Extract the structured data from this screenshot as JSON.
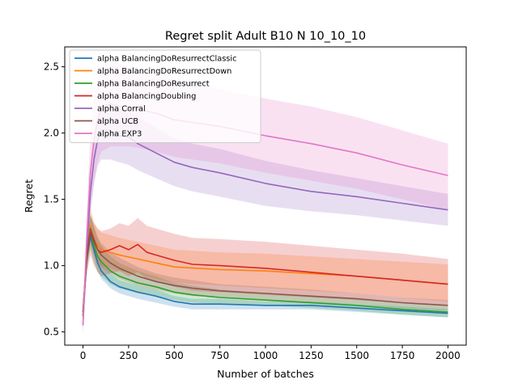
{
  "chart_data": {
    "type": "line",
    "title": "Regret split Adult B10 N 10_10_10",
    "xlabel": "Number of batches",
    "ylabel": "Regret",
    "xlim": [
      -100,
      2100
    ],
    "ylim": [
      0.4,
      2.65
    ],
    "xticks": [
      0,
      250,
      500,
      750,
      1000,
      1250,
      1500,
      1750,
      2000
    ],
    "yticks": [
      0.5,
      1.0,
      1.5,
      2.0,
      2.5
    ],
    "xtick_labels": [
      "0",
      "250",
      "500",
      "750",
      "1000",
      "1250",
      "1500",
      "1750",
      "2000"
    ],
    "ytick_labels": [
      "0.5",
      "1.0",
      "1.5",
      "2.0",
      "2.5"
    ],
    "grid": false,
    "legend_position": "upper-left",
    "bands": "shaded region around each line",
    "series": [
      {
        "name": "alpha BalancingDoResurrectClassic",
        "color": "#1f77b4",
        "x": [
          0,
          20,
          40,
          60,
          80,
          100,
          150,
          200,
          300,
          400,
          500,
          600,
          750,
          1000,
          1250,
          1500,
          1750,
          2000
        ],
        "y": [
          0.62,
          1.05,
          1.22,
          1.12,
          1.02,
          0.96,
          0.88,
          0.84,
          0.8,
          0.77,
          0.73,
          0.71,
          0.71,
          0.7,
          0.7,
          0.68,
          0.66,
          0.64
        ],
        "lower": [
          0.55,
          0.98,
          1.15,
          1.05,
          0.96,
          0.9,
          0.83,
          0.79,
          0.75,
          0.72,
          0.69,
          0.67,
          0.67,
          0.67,
          0.67,
          0.65,
          0.63,
          0.61
        ],
        "upper": [
          0.7,
          1.12,
          1.29,
          1.19,
          1.08,
          1.02,
          0.94,
          0.89,
          0.85,
          0.82,
          0.77,
          0.75,
          0.75,
          0.73,
          0.73,
          0.71,
          0.69,
          0.67
        ]
      },
      {
        "name": "alpha BalancingDoResurrectDown",
        "color": "#ff7f0e",
        "x": [
          0,
          20,
          40,
          60,
          80,
          100,
          150,
          200,
          300,
          400,
          500,
          750,
          1000,
          1250,
          1500,
          1750,
          2000
        ],
        "y": [
          0.62,
          1.1,
          1.3,
          1.2,
          1.15,
          1.12,
          1.1,
          1.08,
          1.05,
          1.02,
          0.99,
          0.97,
          0.96,
          0.94,
          0.92,
          0.89,
          0.86
        ],
        "lower": [
          0.55,
          1.0,
          1.18,
          1.08,
          1.03,
          1.0,
          0.98,
          0.96,
          0.93,
          0.9,
          0.87,
          0.85,
          0.83,
          0.81,
          0.79,
          0.76,
          0.73
        ],
        "upper": [
          0.7,
          1.2,
          1.45,
          1.33,
          1.28,
          1.25,
          1.23,
          1.21,
          1.18,
          1.15,
          1.12,
          1.1,
          1.09,
          1.07,
          1.05,
          1.03,
          1.01
        ]
      },
      {
        "name": "alpha BalancingDoResurrect",
        "color": "#2ca02c",
        "x": [
          0,
          20,
          40,
          60,
          80,
          100,
          150,
          200,
          300,
          400,
          500,
          600,
          750,
          1000,
          1250,
          1500,
          1750,
          2000
        ],
        "y": [
          0.62,
          1.05,
          1.25,
          1.15,
          1.07,
          1.03,
          0.96,
          0.92,
          0.87,
          0.84,
          0.8,
          0.78,
          0.76,
          0.74,
          0.72,
          0.7,
          0.67,
          0.65
        ],
        "lower": [
          0.55,
          0.95,
          1.12,
          1.02,
          0.95,
          0.92,
          0.86,
          0.83,
          0.79,
          0.77,
          0.74,
          0.72,
          0.71,
          0.7,
          0.68,
          0.66,
          0.63,
          0.61
        ],
        "upper": [
          0.7,
          1.15,
          1.4,
          1.29,
          1.2,
          1.15,
          1.07,
          1.02,
          0.96,
          0.92,
          0.87,
          0.85,
          0.82,
          0.79,
          0.77,
          0.75,
          0.72,
          0.7
        ]
      },
      {
        "name": "alpha BalancingDoubling",
        "color": "#d62728",
        "x": [
          0,
          20,
          40,
          60,
          80,
          100,
          150,
          200,
          250,
          300,
          350,
          400,
          500,
          600,
          750,
          1000,
          1250,
          1500,
          1750,
          2000
        ],
        "y": [
          0.65,
          1.05,
          1.25,
          1.18,
          1.12,
          1.1,
          1.12,
          1.15,
          1.12,
          1.16,
          1.1,
          1.08,
          1.04,
          1.01,
          1.0,
          0.98,
          0.95,
          0.92,
          0.89,
          0.86
        ],
        "lower": [
          0.58,
          0.92,
          1.08,
          1.0,
          0.95,
          0.92,
          0.94,
          0.96,
          0.92,
          0.95,
          0.9,
          0.88,
          0.84,
          0.81,
          0.8,
          0.78,
          0.76,
          0.74,
          0.72,
          0.7
        ],
        "upper": [
          0.72,
          1.18,
          1.38,
          1.32,
          1.28,
          1.26,
          1.28,
          1.32,
          1.3,
          1.36,
          1.3,
          1.28,
          1.24,
          1.21,
          1.2,
          1.18,
          1.15,
          1.12,
          1.09,
          1.05
        ]
      },
      {
        "name": "alpha Corral",
        "color": "#9467bd",
        "x": [
          0,
          20,
          40,
          60,
          80,
          100,
          150,
          200,
          250,
          300,
          400,
          500,
          600,
          750,
          1000,
          1250,
          1500,
          1750,
          2000
        ],
        "y": [
          0.55,
          1.1,
          1.55,
          1.8,
          1.95,
          2.02,
          2.02,
          1.98,
          1.97,
          1.92,
          1.85,
          1.78,
          1.74,
          1.7,
          1.62,
          1.56,
          1.52,
          1.47,
          1.42
        ],
        "lower": [
          0.48,
          0.98,
          1.4,
          1.62,
          1.75,
          1.8,
          1.8,
          1.78,
          1.76,
          1.72,
          1.66,
          1.6,
          1.56,
          1.52,
          1.45,
          1.41,
          1.38,
          1.34,
          1.3
        ],
        "upper": [
          0.62,
          1.22,
          1.7,
          1.98,
          2.13,
          2.2,
          2.22,
          2.18,
          2.17,
          2.12,
          2.04,
          1.96,
          1.92,
          1.88,
          1.79,
          1.72,
          1.66,
          1.6,
          1.54
        ]
      },
      {
        "name": "alpha UCB",
        "color": "#8c564b",
        "x": [
          0,
          20,
          40,
          60,
          80,
          100,
          150,
          200,
          300,
          400,
          500,
          600,
          750,
          1000,
          1250,
          1500,
          1750,
          2000
        ],
        "y": [
          0.65,
          1.08,
          1.28,
          1.2,
          1.12,
          1.08,
          1.02,
          0.98,
          0.92,
          0.88,
          0.85,
          0.83,
          0.81,
          0.79,
          0.77,
          0.75,
          0.72,
          0.7
        ],
        "lower": [
          0.58,
          0.98,
          1.18,
          1.1,
          1.02,
          0.99,
          0.94,
          0.9,
          0.85,
          0.82,
          0.79,
          0.77,
          0.76,
          0.74,
          0.72,
          0.71,
          0.68,
          0.66
        ],
        "upper": [
          0.72,
          1.18,
          1.38,
          1.3,
          1.22,
          1.17,
          1.1,
          1.06,
          0.99,
          0.94,
          0.91,
          0.89,
          0.86,
          0.84,
          0.82,
          0.79,
          0.76,
          0.74
        ]
      },
      {
        "name": "alpha EXP3",
        "color": "#e377c2",
        "x": [
          0,
          20,
          40,
          60,
          80,
          100,
          150,
          200,
          250,
          300,
          400,
          500,
          600,
          750,
          1000,
          1250,
          1500,
          1750,
          2000
        ],
        "y": [
          0.55,
          1.2,
          1.7,
          1.95,
          2.1,
          2.2,
          2.22,
          2.2,
          2.2,
          2.18,
          2.15,
          2.1,
          2.08,
          2.05,
          1.98,
          1.92,
          1.85,
          1.76,
          1.68
        ],
        "lower": [
          0.48,
          1.0,
          1.4,
          1.62,
          1.78,
          1.86,
          1.9,
          1.9,
          1.9,
          1.89,
          1.86,
          1.82,
          1.8,
          1.77,
          1.7,
          1.64,
          1.58,
          1.5,
          1.42
        ],
        "upper": [
          0.62,
          1.4,
          2.0,
          2.28,
          2.4,
          2.52,
          2.55,
          2.52,
          2.5,
          2.48,
          2.44,
          2.4,
          2.37,
          2.33,
          2.26,
          2.2,
          2.12,
          2.02,
          1.92
        ]
      }
    ]
  }
}
